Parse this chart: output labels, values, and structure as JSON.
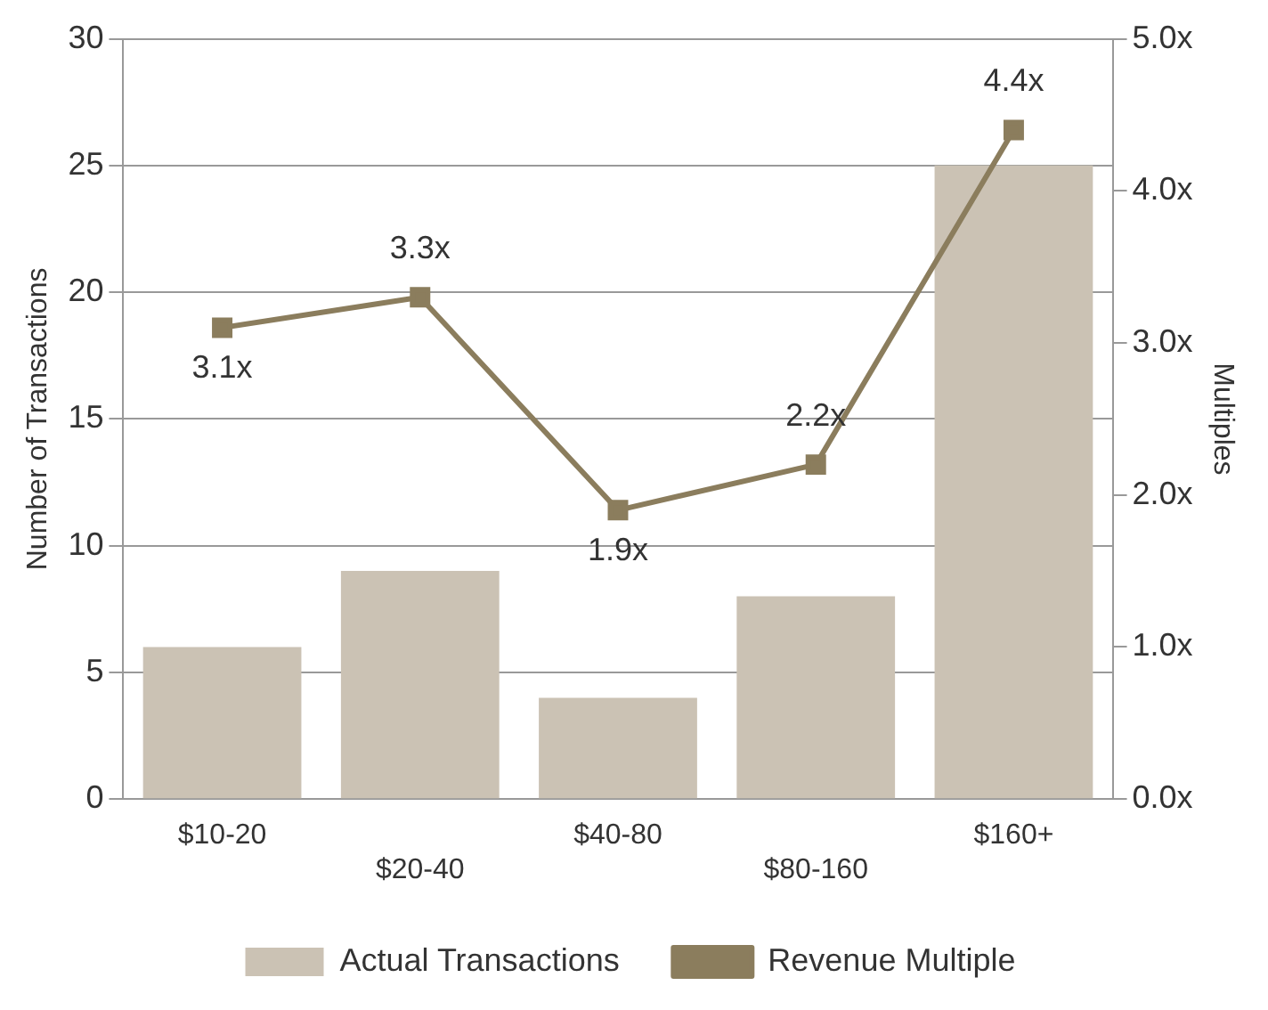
{
  "chart_data": {
    "type": "bar",
    "ylabel": "Number of Transactions",
    "y2label": "Multiples",
    "categories": [
      "$10-20",
      "$20-40",
      "$40-80",
      "$80-160",
      "$160+"
    ],
    "series": [
      {
        "name": "Actual Transactions",
        "color": "#cbc2b4",
        "values": [
          6,
          9,
          4,
          8,
          25
        ]
      },
      {
        "name": "Revenue Multiple",
        "type": "line",
        "axis": "y2",
        "color": "#8b7d5d",
        "marker": "square",
        "values": [
          3.1,
          3.3,
          1.9,
          2.2,
          4.4
        ],
        "value_labels": [
          "3.1x",
          "3.3x",
          "1.9x",
          "2.2x",
          "4.4x"
        ]
      }
    ],
    "ylim": [
      0,
      30
    ],
    "yticks": [
      0,
      5,
      10,
      15,
      20,
      25,
      30
    ],
    "y2lim": [
      0,
      5
    ],
    "y2ticks": [
      {
        "value": 0,
        "label": "0.0x"
      },
      {
        "value": 1,
        "label": "1.0x"
      },
      {
        "value": 2,
        "label": "2.0x"
      },
      {
        "value": 3,
        "label": "3.0x"
      },
      {
        "value": 4,
        "label": "4.0x"
      },
      {
        "value": 5,
        "label": "5.0x"
      }
    ],
    "grid": "y",
    "legend": "bottom"
  }
}
